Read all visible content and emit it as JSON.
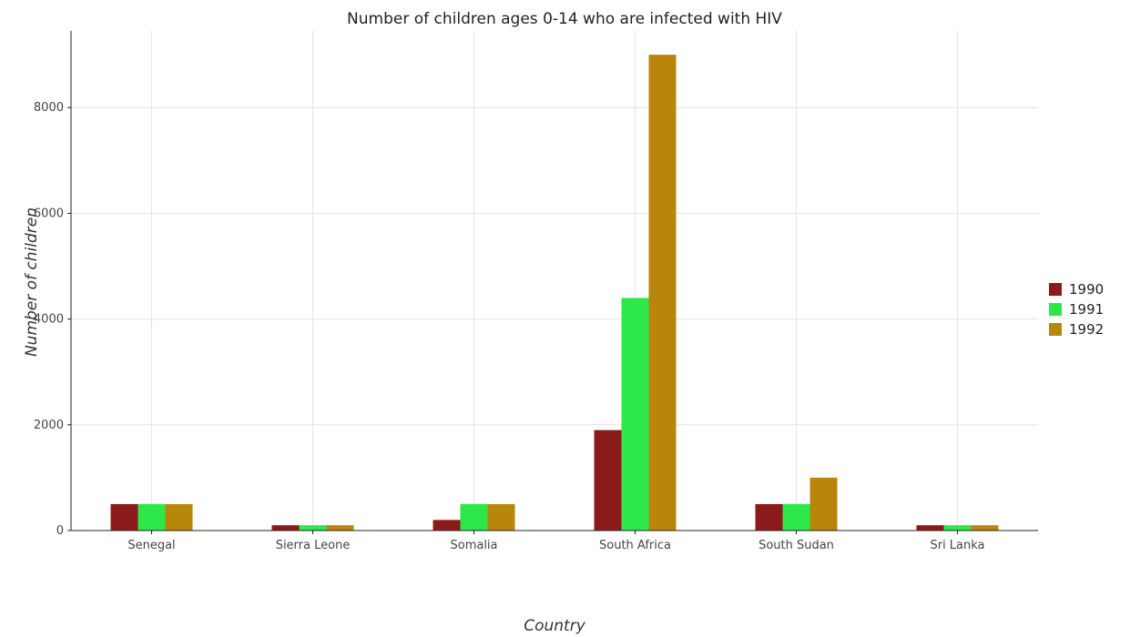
{
  "chart_data": {
    "type": "bar",
    "title": "Number of children ages 0-14 who are infected with HIV",
    "xlabel": "Country",
    "ylabel": "Number of children",
    "categories": [
      "Senegal",
      "Sierra Leone",
      "Somalia",
      "South Africa",
      "South Sudan",
      "Sri Lanka"
    ],
    "series": [
      {
        "name": "1990",
        "color": "#8b1a1a",
        "values": [
          500,
          100,
          200,
          1900,
          500,
          100
        ]
      },
      {
        "name": "1991",
        "color": "#2ee84a",
        "values": [
          500,
          100,
          500,
          4400,
          500,
          100
        ]
      },
      {
        "name": "1992",
        "color": "#b8860b",
        "values": [
          500,
          100,
          500,
          9000,
          1000,
          100
        ]
      }
    ],
    "yticks": [
      0,
      2000,
      4000,
      6000,
      8000
    ],
    "ytick_labels": [
      "0",
      "2000",
      "4000",
      "6000",
      "8000"
    ],
    "ylim": [
      0,
      9450
    ],
    "grid": true,
    "legend_position": "right"
  }
}
